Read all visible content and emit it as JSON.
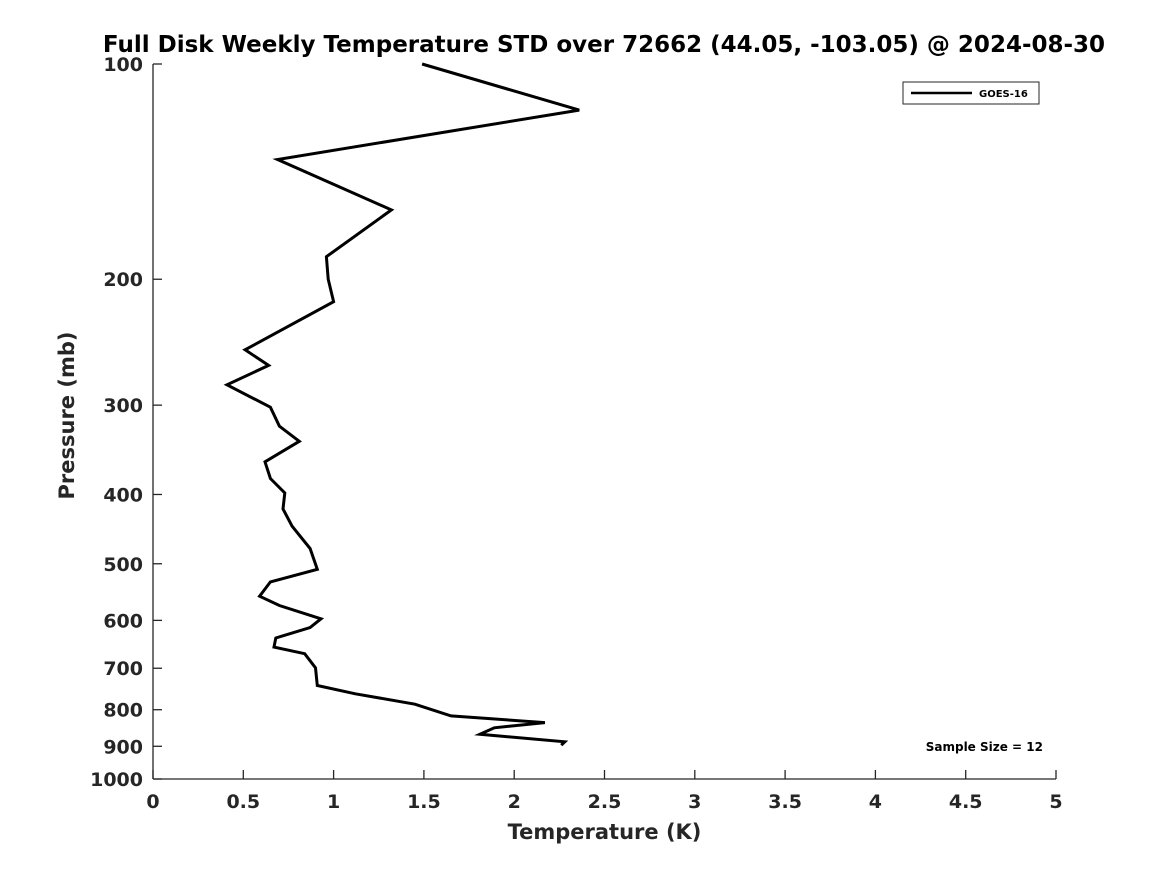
{
  "chart_data": {
    "type": "line",
    "title": "Full Disk Weekly Temperature STD over 72662 (44.05, -103.05) @ 2024-08-30",
    "xlabel": "Temperature (K)",
    "ylabel": "Pressure (mb)",
    "xlim": [
      0,
      5
    ],
    "ylim": [
      100,
      1000
    ],
    "y_scale": "log",
    "y_reversed": true,
    "xticks": [
      0,
      0.5,
      1,
      1.5,
      2,
      2.5,
      3,
      3.5,
      4,
      4.5,
      5
    ],
    "xtick_labels": [
      "0",
      "0.5",
      "1",
      "1.5",
      "2",
      "2.5",
      "3",
      "3.5",
      "4",
      "4.5",
      "5"
    ],
    "yticks": [
      100,
      200,
      300,
      400,
      500,
      600,
      700,
      800,
      900,
      1000
    ],
    "ytick_labels": [
      "100",
      "200",
      "300",
      "400",
      "500",
      "600",
      "700",
      "800",
      "900",
      "1000"
    ],
    "grid": false,
    "legend_position": "top-right",
    "series": [
      {
        "name": "GOES-16",
        "color": "#000000",
        "points": [
          {
            "x": 1.49,
            "p": 100
          },
          {
            "x": 2.36,
            "p": 116
          },
          {
            "x": 0.69,
            "p": 136
          },
          {
            "x": 1.32,
            "p": 160
          },
          {
            "x": 0.96,
            "p": 186
          },
          {
            "x": 0.97,
            "p": 200
          },
          {
            "x": 1.0,
            "p": 215
          },
          {
            "x": 0.51,
            "p": 251
          },
          {
            "x": 0.64,
            "p": 264
          },
          {
            "x": 0.41,
            "p": 281
          },
          {
            "x": 0.65,
            "p": 302
          },
          {
            "x": 0.7,
            "p": 321
          },
          {
            "x": 0.81,
            "p": 337
          },
          {
            "x": 0.62,
            "p": 360
          },
          {
            "x": 0.65,
            "p": 380
          },
          {
            "x": 0.73,
            "p": 398
          },
          {
            "x": 0.72,
            "p": 419
          },
          {
            "x": 0.77,
            "p": 443
          },
          {
            "x": 0.87,
            "p": 476
          },
          {
            "x": 0.91,
            "p": 509
          },
          {
            "x": 0.65,
            "p": 530
          },
          {
            "x": 0.59,
            "p": 555
          },
          {
            "x": 0.7,
            "p": 572
          },
          {
            "x": 0.93,
            "p": 597
          },
          {
            "x": 0.87,
            "p": 614
          },
          {
            "x": 0.68,
            "p": 635
          },
          {
            "x": 0.67,
            "p": 654
          },
          {
            "x": 0.84,
            "p": 668
          },
          {
            "x": 0.9,
            "p": 699
          },
          {
            "x": 0.91,
            "p": 740
          },
          {
            "x": 1.12,
            "p": 760
          },
          {
            "x": 1.45,
            "p": 786
          },
          {
            "x": 1.65,
            "p": 816
          },
          {
            "x": 2.17,
            "p": 834
          },
          {
            "x": 1.89,
            "p": 848
          },
          {
            "x": 1.81,
            "p": 866
          },
          {
            "x": 2.28,
            "p": 887
          },
          {
            "x": 2.26,
            "p": 897
          }
        ]
      }
    ],
    "annotations": [
      "Sample Size = 12"
    ]
  }
}
